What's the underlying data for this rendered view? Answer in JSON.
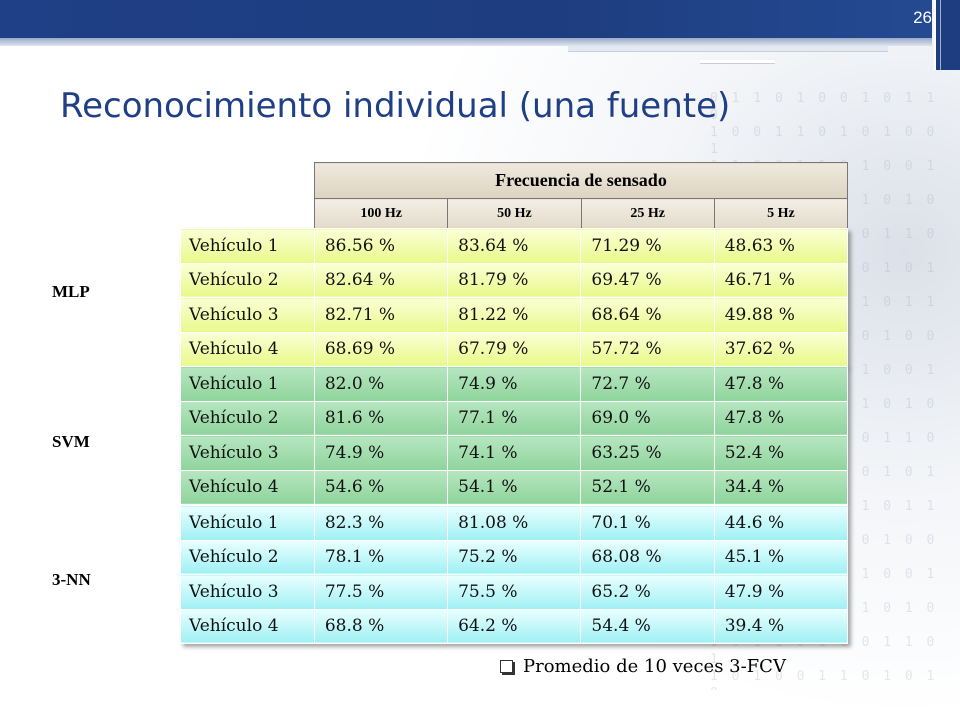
{
  "slide": {
    "number": "26",
    "title": "Reconocimiento individual (una fuente)"
  },
  "header": {
    "main": "Frecuencia de sensado",
    "columns": [
      "100 Hz",
      "50 Hz",
      "25 Hz",
      "5 Hz"
    ]
  },
  "groups": [
    {
      "label": "MLP",
      "rows": [
        {
          "label": "Vehículo 1",
          "values": [
            "86.56 %",
            "83.64 %",
            "71.29 %",
            "48.63 %"
          ]
        },
        {
          "label": "Vehículo 2",
          "values": [
            "82.64 %",
            "81.79 %",
            "69.47 %",
            "46.71 %"
          ]
        },
        {
          "label": "Vehículo 3",
          "values": [
            "82.71 %",
            "81.22 %",
            "68.64 %",
            "49.88 %"
          ]
        },
        {
          "label": "Vehículo 4",
          "values": [
            "68.69 %",
            "67.79 %",
            "57.72 %",
            "37.62 %"
          ]
        }
      ]
    },
    {
      "label": "SVM",
      "rows": [
        {
          "label": "Vehículo 1",
          "values": [
            "82.0 %",
            "74.9 %",
            "72.7 %",
            "47.8 %"
          ]
        },
        {
          "label": "Vehículo 2",
          "values": [
            "81.6 %",
            "77.1 %",
            "69.0 %",
            "47.8 %"
          ]
        },
        {
          "label": "Vehículo 3",
          "values": [
            "74.9 %",
            "74.1 %",
            "63.25 %",
            "52.4 %"
          ]
        },
        {
          "label": "Vehículo 4",
          "values": [
            "54.6 %",
            "54.1 %",
            "52.1 %",
            "34.4 %"
          ]
        }
      ]
    },
    {
      "label": "3-NN",
      "rows": [
        {
          "label": "Vehículo 1",
          "values": [
            "82.3 %",
            "81.08 %",
            "70.1 %",
            "44.6 %"
          ]
        },
        {
          "label": "Vehículo 2",
          "values": [
            "78.1 %",
            "75.2 %",
            "68.08 %",
            "45.1 %"
          ]
        },
        {
          "label": "Vehículo 3",
          "values": [
            "77.5 %",
            "75.5 %",
            "65.2 %",
            "47.9 %"
          ]
        },
        {
          "label": "Vehículo 4",
          "values": [
            "68.8 %",
            "64.2 %",
            "54.4 %",
            "39.4 %"
          ]
        }
      ]
    }
  ],
  "note": {
    "text": "Promedio de 10 veces 3-FCV",
    "bullet_icon": "checkbox-bullet-icon"
  },
  "colors": {
    "title": "#1f3f86",
    "mlp": "#e9f98a",
    "svm": "#8fd49c",
    "nn": "#9ff0f4"
  }
}
